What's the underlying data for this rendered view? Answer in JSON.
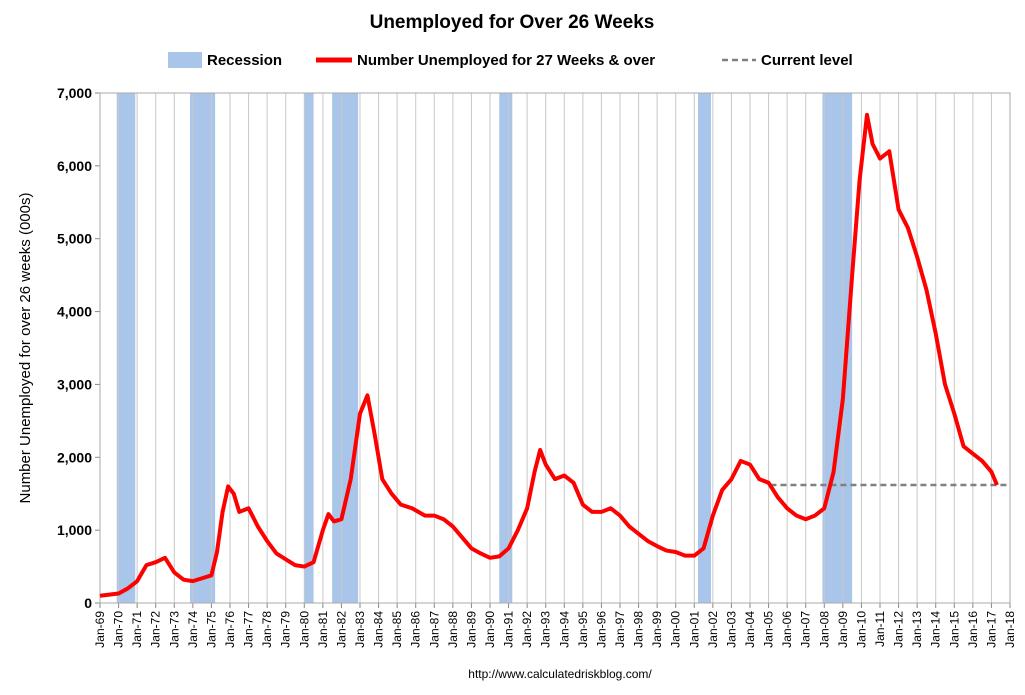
{
  "chart_data": {
    "type": "line",
    "title": "Unemployed for Over 26 Weeks",
    "ylabel": "Number Unemployed for over 26 weeks (000s)",
    "source": "http://www.calculatedriskblog.com/",
    "xlim": [
      1969,
      2018
    ],
    "ylim": [
      0,
      7000
    ],
    "yticks": [
      0,
      {
        "value": 1000,
        "label": "1,000"
      },
      {
        "value": 2000,
        "label": "2,000"
      },
      {
        "value": 3000,
        "label": "3,000"
      },
      {
        "value": 4000,
        "label": "4,000"
      },
      {
        "value": 5000,
        "label": "5,000"
      },
      {
        "value": 6000,
        "label": "6,000"
      },
      {
        "value": 7000,
        "label": "7,000"
      }
    ],
    "xticks": [
      {
        "value": 1969,
        "label": "Jan-69"
      },
      {
        "value": 1970,
        "label": "Jan-70"
      },
      {
        "value": 1971,
        "label": "Jan-71"
      },
      {
        "value": 1972,
        "label": "Jan-72"
      },
      {
        "value": 1973,
        "label": "Jan-73"
      },
      {
        "value": 1974,
        "label": "Jan-74"
      },
      {
        "value": 1975,
        "label": "Jan-75"
      },
      {
        "value": 1976,
        "label": "Jan-76"
      },
      {
        "value": 1977,
        "label": "Jan-77"
      },
      {
        "value": 1978,
        "label": "Jan-78"
      },
      {
        "value": 1979,
        "label": "Jan-79"
      },
      {
        "value": 1980,
        "label": "Jan-80"
      },
      {
        "value": 1981,
        "label": "Jan-81"
      },
      {
        "value": 1982,
        "label": "Jan-82"
      },
      {
        "value": 1983,
        "label": "Jan-83"
      },
      {
        "value": 1984,
        "label": "Jan-84"
      },
      {
        "value": 1985,
        "label": "Jan-85"
      },
      {
        "value": 1986,
        "label": "Jan-86"
      },
      {
        "value": 1987,
        "label": "Jan-87"
      },
      {
        "value": 1988,
        "label": "Jan-88"
      },
      {
        "value": 1989,
        "label": "Jan-89"
      },
      {
        "value": 1990,
        "label": "Jan-90"
      },
      {
        "value": 1991,
        "label": "Jan-91"
      },
      {
        "value": 1992,
        "label": "Jan-92"
      },
      {
        "value": 1993,
        "label": "Jan-93"
      },
      {
        "value": 1994,
        "label": "Jan-94"
      },
      {
        "value": 1995,
        "label": "Jan-95"
      },
      {
        "value": 1996,
        "label": "Jan-96"
      },
      {
        "value": 1997,
        "label": "Jan-97"
      },
      {
        "value": 1998,
        "label": "Jan-98"
      },
      {
        "value": 1999,
        "label": "Jan-99"
      },
      {
        "value": 2000,
        "label": "Jan-00"
      },
      {
        "value": 2001,
        "label": "Jan-01"
      },
      {
        "value": 2002,
        "label": "Jan-02"
      },
      {
        "value": 2003,
        "label": "Jan-03"
      },
      {
        "value": 2004,
        "label": "Jan-04"
      },
      {
        "value": 2005,
        "label": "Jan-05"
      },
      {
        "value": 2006,
        "label": "Jan-06"
      },
      {
        "value": 2007,
        "label": "Jan-07"
      },
      {
        "value": 2008,
        "label": "Jan-08"
      },
      {
        "value": 2009,
        "label": "Jan-09"
      },
      {
        "value": 2010,
        "label": "Jan-10"
      },
      {
        "value": 2011,
        "label": "Jan-11"
      },
      {
        "value": 2012,
        "label": "Jan-12"
      },
      {
        "value": 2013,
        "label": "Jan-13"
      },
      {
        "value": 2014,
        "label": "Jan-14"
      },
      {
        "value": 2015,
        "label": "Jan-15"
      },
      {
        "value": 2016,
        "label": "Jan-16"
      },
      {
        "value": 2017,
        "label": "Jan-17"
      },
      {
        "value": 2018,
        "label": "Jan-18"
      }
    ],
    "grid": true,
    "recessions": {
      "name": "Recession",
      "color": "#a9c6ea",
      "periods": [
        [
          1969.9,
          1970.9
        ],
        [
          1973.85,
          1975.2
        ],
        [
          1980.0,
          1980.5
        ],
        [
          1981.5,
          1982.9
        ],
        [
          1990.5,
          1991.2
        ],
        [
          2001.2,
          2001.9
        ],
        [
          2007.9,
          2009.5
        ]
      ]
    },
    "series": [
      {
        "name": "Number Unemployed for 27 Weeks & over",
        "color": "#ff0000",
        "x": [
          1969.0,
          1970.0,
          1970.5,
          1971.0,
          1971.5,
          1972.0,
          1972.5,
          1973.0,
          1973.5,
          1974.0,
          1974.5,
          1975.0,
          1975.3,
          1975.6,
          1975.9,
          1976.2,
          1976.5,
          1977.0,
          1977.5,
          1978.0,
          1978.5,
          1979.0,
          1979.5,
          1980.0,
          1980.5,
          1981.0,
          1981.3,
          1981.6,
          1982.0,
          1982.5,
          1983.0,
          1983.4,
          1983.8,
          1984.2,
          1984.7,
          1985.2,
          1985.8,
          1986.5,
          1987.0,
          1987.5,
          1988.0,
          1988.5,
          1989.0,
          1989.5,
          1990.0,
          1990.5,
          1991.0,
          1991.5,
          1992.0,
          1992.4,
          1992.7,
          1993.0,
          1993.5,
          1994.0,
          1994.5,
          1995.0,
          1995.5,
          1996.0,
          1996.5,
          1997.0,
          1997.5,
          1998.0,
          1998.5,
          1999.0,
          1999.5,
          2000.0,
          2000.5,
          2001.0,
          2001.5,
          2002.0,
          2002.5,
          2003.0,
          2003.5,
          2004.0,
          2004.5,
          2005.0,
          2005.5,
          2006.0,
          2006.5,
          2007.0,
          2007.5,
          2008.0,
          2008.5,
          2009.0,
          2009.5,
          2009.9,
          2010.3,
          2010.6,
          2011.0,
          2011.5,
          2012.0,
          2012.5,
          2013.0,
          2013.5,
          2014.0,
          2014.5,
          2015.0,
          2015.5,
          2016.0,
          2016.5,
          2017.0,
          2017.3
        ],
        "values": [
          100,
          130,
          200,
          300,
          520,
          560,
          620,
          420,
          320,
          300,
          340,
          380,
          700,
          1250,
          1600,
          1500,
          1250,
          1300,
          1050,
          850,
          680,
          600,
          520,
          500,
          560,
          1000,
          1220,
          1120,
          1150,
          1700,
          2600,
          2850,
          2300,
          1700,
          1500,
          1350,
          1300,
          1200,
          1200,
          1150,
          1050,
          900,
          750,
          680,
          620,
          640,
          750,
          1000,
          1300,
          1800,
          2100,
          1900,
          1700,
          1750,
          1650,
          1350,
          1250,
          1250,
          1300,
          1200,
          1050,
          950,
          850,
          780,
          720,
          700,
          650,
          650,
          750,
          1200,
          1550,
          1700,
          1950,
          1900,
          1700,
          1650,
          1450,
          1300,
          1200,
          1150,
          1200,
          1300,
          1800,
          2800,
          4500,
          5800,
          6700,
          6300,
          6100,
          6200,
          5400,
          5150,
          4750,
          4300,
          3700,
          3000,
          2600,
          2150,
          2050,
          1950,
          1800,
          1620
        ]
      }
    ],
    "current_level": {
      "name": "Current level",
      "color": "#808080",
      "value": 1620,
      "x": [
        2005.1,
        2018
      ]
    }
  }
}
